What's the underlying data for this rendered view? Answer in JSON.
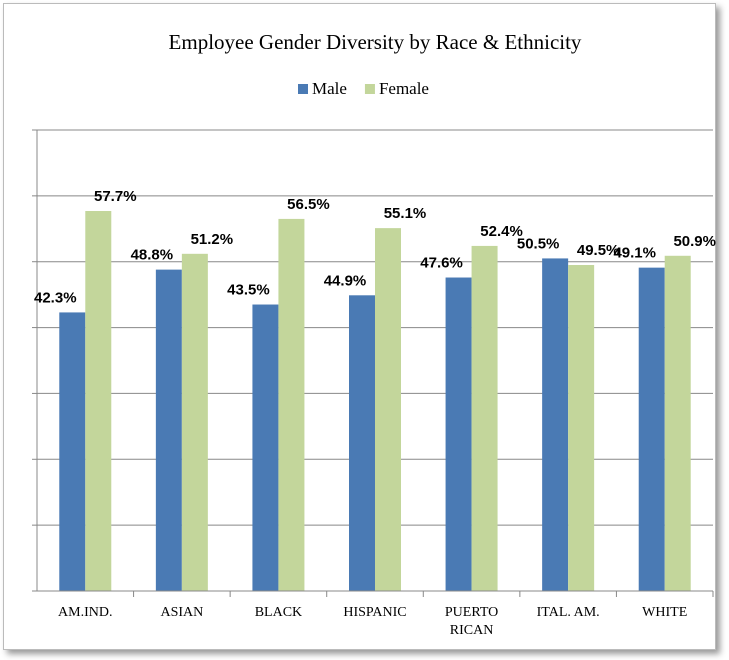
{
  "chart_data": {
    "type": "bar",
    "title": "Employee Gender Diversity by Race & Ethnicity",
    "categories": [
      "AM.IND.",
      "ASIAN",
      "BLACK",
      "HISPANIC",
      "PUERTO RICAN",
      "ITAL. AM.",
      "WHITE"
    ],
    "series": [
      {
        "name": "Male",
        "color": "#4a7ab4",
        "values": [
          42.3,
          48.8,
          43.5,
          44.9,
          47.6,
          50.5,
          49.1
        ],
        "value_labels": [
          "42.3%",
          "48.8%",
          "43.5%",
          "44.9%",
          "47.6%",
          "50.5%",
          "49.1%"
        ]
      },
      {
        "name": "Female",
        "color": "#c3d69b",
        "values": [
          57.7,
          51.2,
          56.5,
          55.1,
          52.4,
          49.5,
          50.9
        ],
        "value_labels": [
          "57.7%",
          "51.2%",
          "56.5%",
          "55.1%",
          "52.4%",
          "49.5%",
          "50.9%"
        ]
      }
    ],
    "ylim": [
      0,
      70
    ],
    "yticks": [
      0,
      10,
      20,
      30,
      40,
      50,
      60,
      70
    ],
    "grid": true,
    "show_ytick_labels": false,
    "legend": "top"
  }
}
